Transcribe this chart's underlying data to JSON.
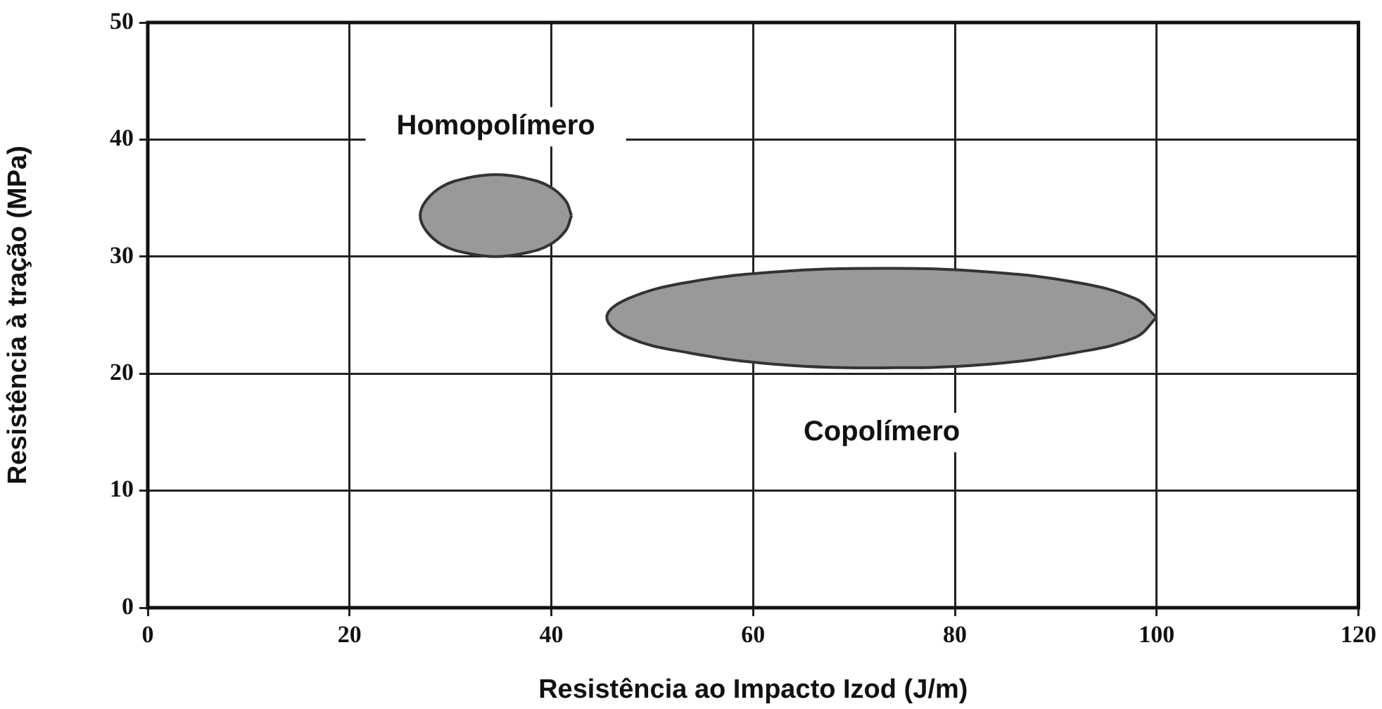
{
  "chart_data": {
    "type": "area",
    "xlabel": "Resistência ao Impacto Izod (J/m)",
    "ylabel": "Resistência à tração (MPa)",
    "xlim": [
      0,
      120
    ],
    "xticks": [
      0,
      20,
      40,
      60,
      80,
      100,
      120
    ],
    "ylim": [
      0,
      50
    ],
    "yticks": [
      0,
      10,
      20,
      30,
      40,
      50
    ],
    "grid": true,
    "legend": false,
    "series": [
      {
        "name": "Homopolímero",
        "color": "#999999",
        "x": [
          42,
          41.4,
          39.8,
          37.4,
          34.5,
          31.6,
          29.2,
          27.6,
          27,
          27.6,
          29.2,
          31.6,
          34.5,
          37.4,
          39.8,
          41.4,
          42
        ],
        "values": [
          33.5,
          34.8,
          36,
          36.7,
          37,
          36.7,
          36,
          34.8,
          33.5,
          32.2,
          31,
          30.3,
          30,
          30.3,
          31,
          32.2,
          33.5
        ]
      },
      {
        "name": "Copolímero",
        "color": "#999999",
        "x": [
          100,
          97.9,
          92,
          83.2,
          72.8,
          62.3,
          53.5,
          47.6,
          45.5,
          47.6,
          53.5,
          62.3,
          72.8,
          83.2,
          92,
          97.9,
          100
        ],
        "values": [
          24.8,
          26.4,
          27.8,
          28.7,
          29,
          28.7,
          27.8,
          26.4,
          24.8,
          23.1,
          21.8,
          20.8,
          20.5,
          20.8,
          21.8,
          23.1,
          24.8
        ]
      }
    ]
  }
}
